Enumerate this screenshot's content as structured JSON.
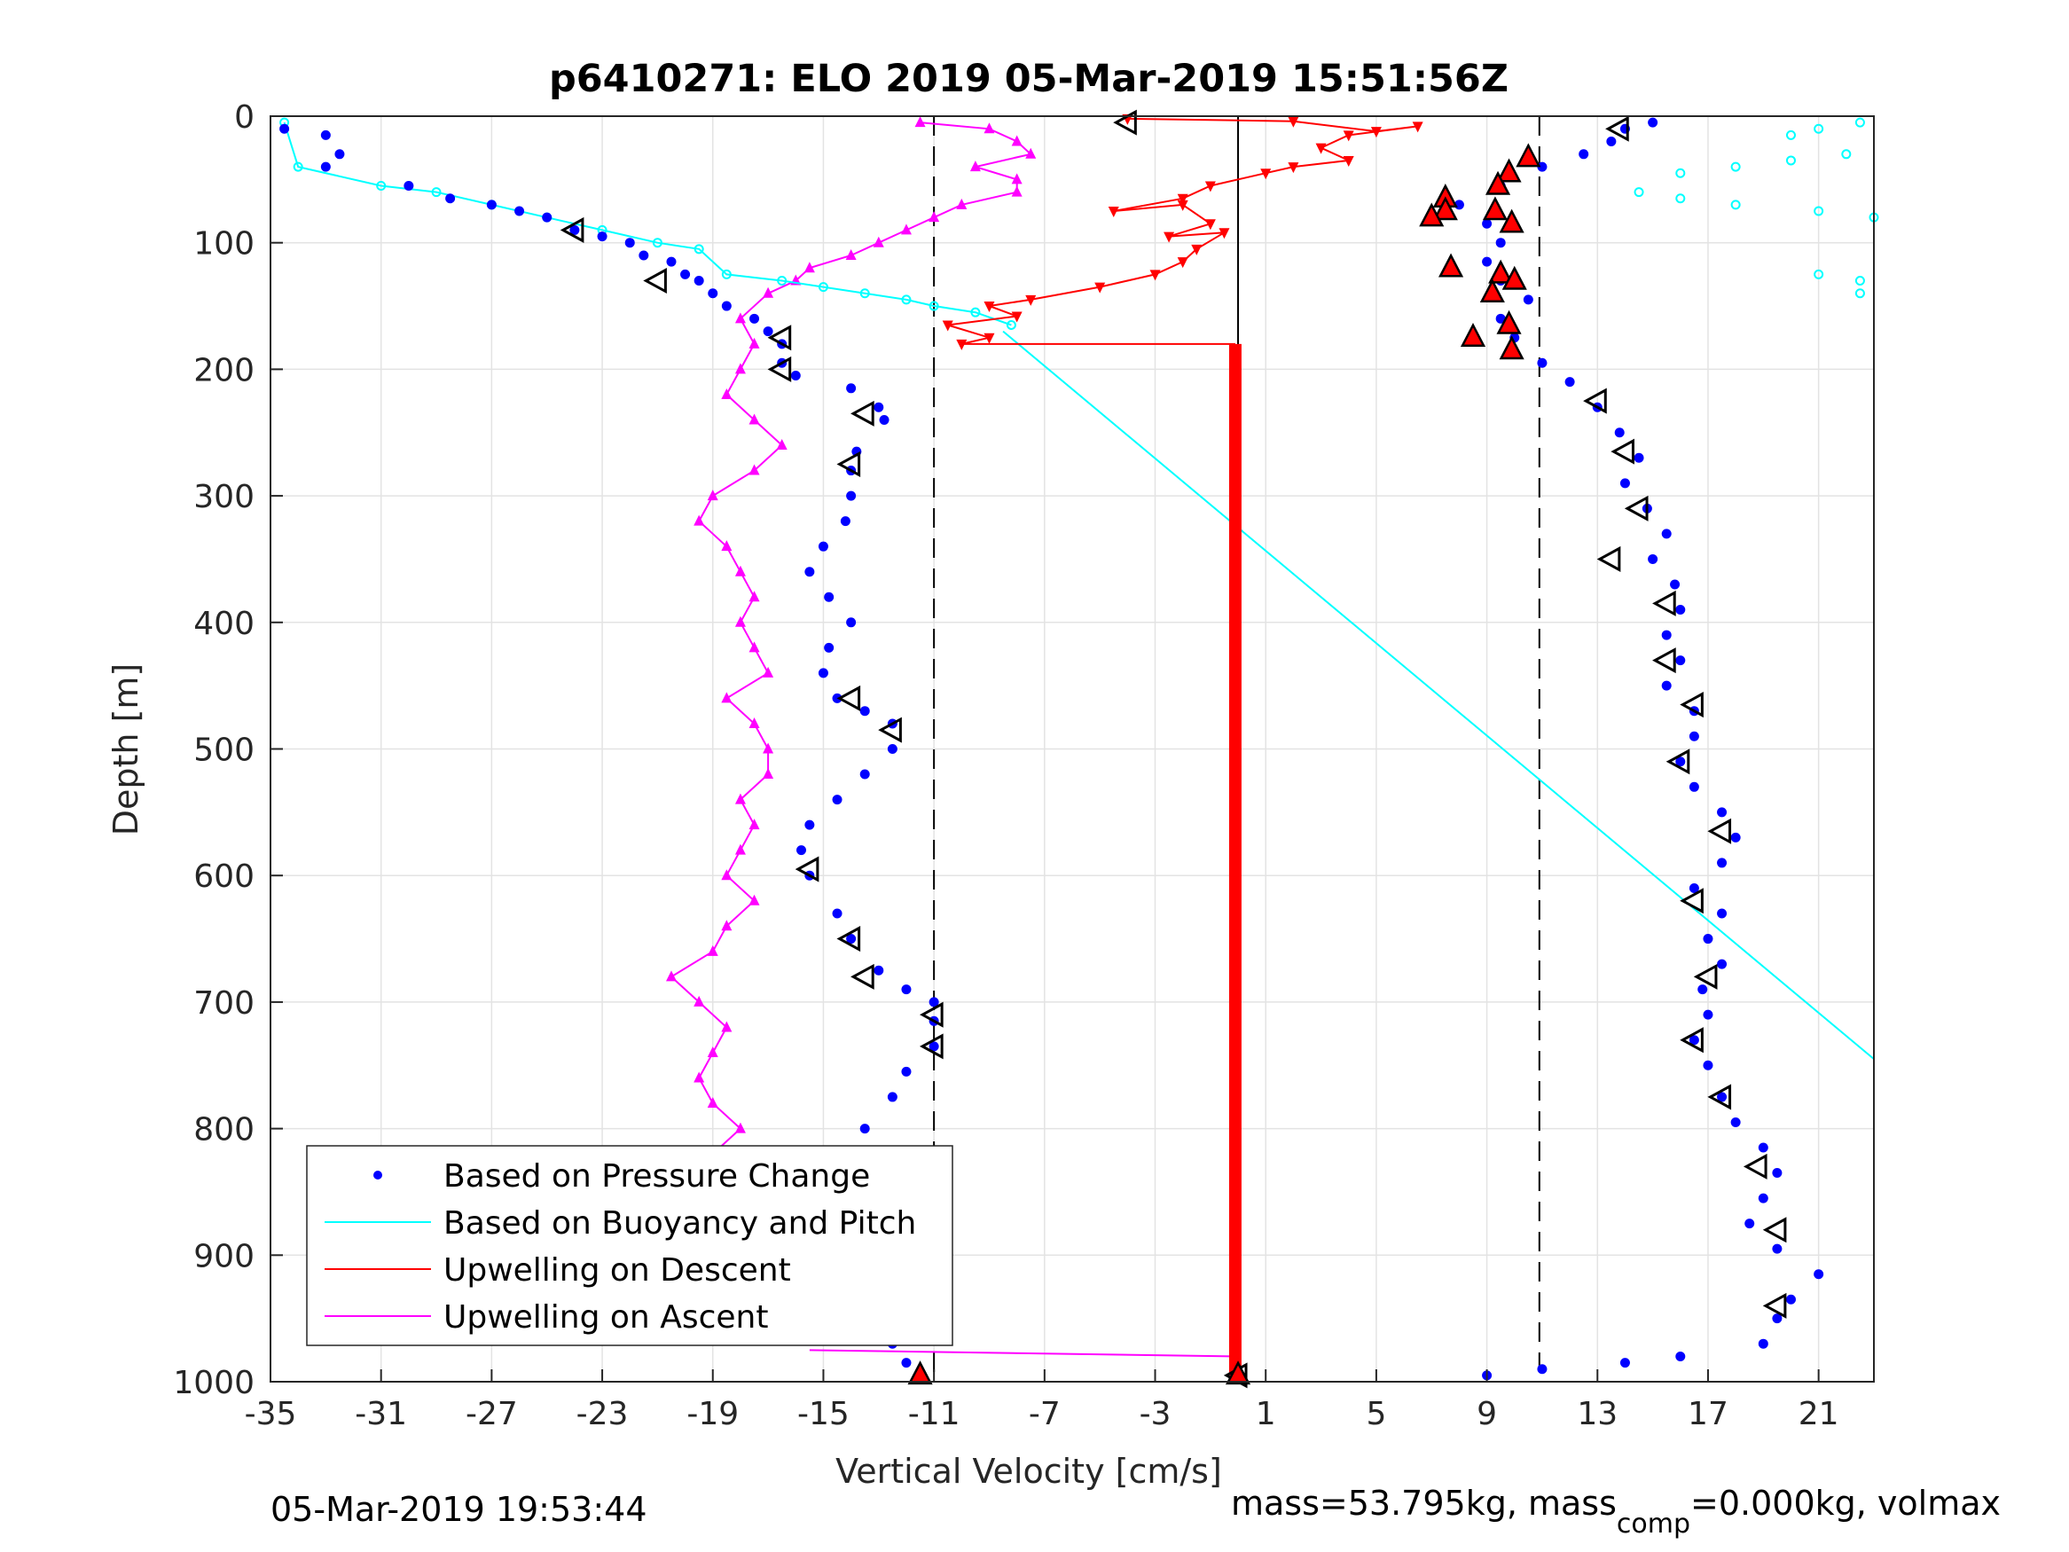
{
  "chart_data": {
    "type": "scatter",
    "title": "p6410271: ELO 2019 05-Mar-2019 15:51:56Z",
    "xlabel": "Vertical Velocity [cm/s]",
    "ylabel": "Depth [m]",
    "xlim": [
      -35,
      23
    ],
    "ylim": [
      0,
      1000
    ],
    "y_reversed": true,
    "grid": true,
    "x_ticks": [
      -35,
      -31,
      -27,
      -23,
      -19,
      -15,
      -11,
      -7,
      -3,
      1,
      5,
      9,
      13,
      17,
      21
    ],
    "x_tick_labels": [
      "-35",
      "-31",
      "-27",
      "-23",
      "-19",
      "-15",
      "-11",
      "-7",
      "-3",
      "1",
      "5",
      "9",
      "13",
      "17",
      "21"
    ],
    "y_ticks": [
      0,
      100,
      200,
      300,
      400,
      500,
      600,
      700,
      800,
      900,
      1000
    ],
    "y_tick_labels": [
      "0",
      "100",
      "200",
      "300",
      "400",
      "500",
      "600",
      "700",
      "800",
      "900",
      "1000"
    ],
    "reference_lines_x": [
      -11,
      0,
      10.9
    ],
    "legend_position": "bottom-left",
    "legend": [
      {
        "label": "Based on Pressure Change",
        "color": "#0000ff",
        "style": "dot"
      },
      {
        "label": "Based on Buoyancy and Pitch",
        "color": "#00ffff",
        "style": "line"
      },
      {
        "label": "Upwelling on Descent",
        "color": "#ff0000",
        "style": "line"
      },
      {
        "label": "Upwelling on Ascent",
        "color": "#ff00ff",
        "style": "line"
      }
    ],
    "series": [
      {
        "name": "Based on Pressure Change",
        "color": "#0000ff",
        "descent": [
          [
            -34.5,
            10
          ],
          [
            -33,
            15
          ],
          [
            -32.5,
            30
          ],
          [
            -33,
            40
          ],
          [
            -30,
            55
          ],
          [
            -28.5,
            65
          ],
          [
            -27,
            70
          ],
          [
            -26,
            75
          ],
          [
            -25,
            80
          ],
          [
            -24,
            90
          ],
          [
            -23,
            95
          ],
          [
            -22,
            100
          ],
          [
            -21.5,
            110
          ],
          [
            -20.5,
            115
          ],
          [
            -20,
            125
          ],
          [
            -19.5,
            130
          ],
          [
            -19,
            140
          ],
          [
            -18.5,
            150
          ],
          [
            -17.5,
            160
          ],
          [
            -17,
            170
          ],
          [
            -16.5,
            180
          ],
          [
            -16.5,
            195
          ],
          [
            -16,
            205
          ],
          [
            -14,
            215
          ],
          [
            -13,
            230
          ],
          [
            -12.8,
            240
          ],
          [
            -13.8,
            265
          ],
          [
            -14,
            280
          ],
          [
            -14,
            300
          ],
          [
            -14.2,
            320
          ],
          [
            -15,
            340
          ],
          [
            -15.5,
            360
          ],
          [
            -14.8,
            380
          ],
          [
            -14,
            400
          ],
          [
            -14.8,
            420
          ],
          [
            -15,
            440
          ],
          [
            -14.5,
            460
          ],
          [
            -13.5,
            470
          ],
          [
            -12.5,
            480
          ],
          [
            -12.5,
            500
          ],
          [
            -13.5,
            520
          ],
          [
            -14.5,
            540
          ],
          [
            -15.5,
            560
          ],
          [
            -15.8,
            580
          ],
          [
            -15.5,
            600
          ],
          [
            -14.5,
            630
          ],
          [
            -14,
            650
          ],
          [
            -13,
            675
          ],
          [
            -12,
            690
          ],
          [
            -11,
            700
          ],
          [
            -11,
            715
          ],
          [
            -11,
            735
          ],
          [
            -12,
            755
          ],
          [
            -12.5,
            775
          ],
          [
            -13.5,
            800
          ],
          [
            -14,
            820
          ],
          [
            -14.5,
            840
          ],
          [
            -14.8,
            860
          ],
          [
            -15,
            880
          ],
          [
            -14.5,
            900
          ],
          [
            -14,
            920
          ],
          [
            -13.5,
            940
          ],
          [
            -13.5,
            960
          ],
          [
            -12.5,
            970
          ],
          [
            -12,
            985
          ],
          [
            -11.5,
            995
          ]
        ],
        "ascent": [
          [
            9,
            995
          ],
          [
            11,
            990
          ],
          [
            14,
            985
          ],
          [
            16,
            980
          ],
          [
            19,
            970
          ],
          [
            19.5,
            950
          ],
          [
            20,
            935
          ],
          [
            21,
            915
          ],
          [
            19.5,
            895
          ],
          [
            18.5,
            875
          ],
          [
            19,
            855
          ],
          [
            19.5,
            835
          ],
          [
            19,
            815
          ],
          [
            18,
            795
          ],
          [
            17.5,
            775
          ],
          [
            17,
            750
          ],
          [
            16.5,
            730
          ],
          [
            17,
            710
          ],
          [
            16.8,
            690
          ],
          [
            17.5,
            670
          ],
          [
            17,
            650
          ],
          [
            17.5,
            630
          ],
          [
            16.5,
            610
          ],
          [
            17.5,
            590
          ],
          [
            18,
            570
          ],
          [
            17.5,
            550
          ],
          [
            16.5,
            530
          ],
          [
            16,
            510
          ],
          [
            16.5,
            490
          ],
          [
            16.5,
            470
          ],
          [
            15.5,
            450
          ],
          [
            16,
            430
          ],
          [
            15.5,
            410
          ],
          [
            16,
            390
          ],
          [
            15.8,
            370
          ],
          [
            15,
            350
          ],
          [
            15.5,
            330
          ],
          [
            14.8,
            310
          ],
          [
            14,
            290
          ],
          [
            14.5,
            270
          ],
          [
            13.8,
            250
          ],
          [
            13,
            230
          ],
          [
            12,
            210
          ],
          [
            11,
            195
          ],
          [
            10,
            175
          ],
          [
            9.5,
            160
          ],
          [
            10.5,
            145
          ],
          [
            9.5,
            130
          ],
          [
            9,
            115
          ],
          [
            9.5,
            100
          ],
          [
            9,
            85
          ],
          [
            8,
            70
          ],
          [
            9.5,
            55
          ],
          [
            11,
            40
          ],
          [
            12.5,
            30
          ],
          [
            13.5,
            20
          ],
          [
            14,
            10
          ],
          [
            15,
            5
          ]
        ]
      },
      {
        "name": "Based on Buoyancy and Pitch",
        "color": "#00ffff",
        "descent": [
          [
            -34.5,
            5
          ],
          [
            -34,
            40
          ],
          [
            -31,
            55
          ],
          [
            -29,
            60
          ],
          [
            -27,
            70
          ],
          [
            -25,
            80
          ],
          [
            -23,
            90
          ],
          [
            -21,
            100
          ],
          [
            -19.5,
            105
          ],
          [
            -18.5,
            125
          ],
          [
            -16.5,
            130
          ],
          [
            -15,
            135
          ],
          [
            -13.5,
            140
          ],
          [
            -12,
            145
          ],
          [
            -11,
            150
          ],
          [
            -9.5,
            155
          ],
          [
            -8.2,
            165
          ]
        ],
        "line_segment": [
          [
            -8.5,
            170
          ],
          [
            23,
            745
          ]
        ],
        "ascent": [
          [
            14.5,
            60
          ],
          [
            16,
            65
          ],
          [
            18,
            70
          ],
          [
            21,
            75
          ],
          [
            23,
            80
          ],
          [
            16,
            45
          ],
          [
            18,
            40
          ],
          [
            20,
            35
          ],
          [
            22,
            30
          ],
          [
            20,
            15
          ],
          [
            21,
            10
          ],
          [
            22.5,
            5
          ],
          [
            21,
            125
          ],
          [
            22.5,
            130
          ],
          [
            22.5,
            140
          ]
        ]
      },
      {
        "name": "Upwelling on Descent",
        "color": "#ff0000",
        "descent": [
          [
            -4,
            2
          ],
          [
            2,
            4
          ],
          [
            5,
            12
          ],
          [
            6.5,
            8
          ],
          [
            4,
            15
          ],
          [
            3,
            25
          ],
          [
            4,
            35
          ],
          [
            2,
            40
          ],
          [
            1,
            45
          ],
          [
            -1,
            55
          ],
          [
            -2,
            65
          ],
          [
            -4.5,
            75
          ],
          [
            -2,
            70
          ],
          [
            -1,
            85
          ],
          [
            -2.5,
            95
          ],
          [
            -0.5,
            92
          ],
          [
            -1.5,
            105
          ],
          [
            -2,
            115
          ],
          [
            -3,
            125
          ],
          [
            -5,
            135
          ],
          [
            -7.5,
            145
          ],
          [
            -9,
            150
          ],
          [
            -8,
            158
          ],
          [
            -10.5,
            165
          ],
          [
            -9,
            175
          ],
          [
            -10,
            180
          ]
        ],
        "constant_segment": [
          [
            -0.1,
            180
          ],
          [
            -0.1,
            995
          ]
        ]
      },
      {
        "name": "Upwelling on Ascent",
        "color": "#ff00ff",
        "ascent": [
          [
            -11.5,
            5
          ],
          [
            -9,
            10
          ],
          [
            -8,
            20
          ],
          [
            -7.5,
            30
          ],
          [
            -9.5,
            40
          ],
          [
            -8,
            50
          ],
          [
            -8,
            60
          ],
          [
            -10,
            70
          ],
          [
            -11,
            80
          ],
          [
            -12,
            90
          ],
          [
            -13,
            100
          ],
          [
            -14,
            110
          ],
          [
            -15.5,
            120
          ],
          [
            -16,
            130
          ],
          [
            -17,
            140
          ],
          [
            -18,
            160
          ],
          [
            -17.5,
            180
          ],
          [
            -18,
            200
          ],
          [
            -18.5,
            220
          ],
          [
            -17.5,
            240
          ],
          [
            -16.5,
            260
          ],
          [
            -17.5,
            280
          ],
          [
            -19,
            300
          ],
          [
            -19.5,
            320
          ],
          [
            -18.5,
            340
          ],
          [
            -18,
            360
          ],
          [
            -17.5,
            380
          ],
          [
            -18,
            400
          ],
          [
            -17.5,
            420
          ],
          [
            -17,
            440
          ],
          [
            -18.5,
            460
          ],
          [
            -17.5,
            480
          ],
          [
            -17,
            500
          ],
          [
            -17,
            520
          ],
          [
            -18,
            540
          ],
          [
            -17.5,
            560
          ],
          [
            -18,
            580
          ],
          [
            -18.5,
            600
          ],
          [
            -17.5,
            620
          ],
          [
            -18.5,
            640
          ],
          [
            -19,
            660
          ],
          [
            -20.5,
            680
          ],
          [
            -19.5,
            700
          ],
          [
            -18.5,
            720
          ],
          [
            -19,
            740
          ],
          [
            -19.5,
            760
          ],
          [
            -19,
            780
          ],
          [
            -18,
            800
          ],
          [
            -19,
            820
          ],
          [
            -18,
            840
          ],
          [
            -17.5,
            860
          ],
          [
            -16.5,
            880
          ],
          [
            -16,
            900
          ],
          [
            -16.5,
            920
          ],
          [
            -16,
            940
          ],
          [
            -15.5,
            960
          ]
        ],
        "connector_segment": [
          [
            -15.5,
            975
          ],
          [
            0,
            980
          ]
        ]
      }
    ],
    "markers": {
      "black_triangles": [
        [
          -24,
          90
        ],
        [
          -21,
          130
        ],
        [
          -16.5,
          175
        ],
        [
          -16.5,
          200
        ],
        [
          -13.5,
          235
        ],
        [
          -14,
          275
        ],
        [
          -14,
          460
        ],
        [
          -12.5,
          485
        ],
        [
          -15.5,
          595
        ],
        [
          -14,
          650
        ],
        [
          -13.5,
          680
        ],
        [
          -11,
          710
        ],
        [
          -11,
          735
        ],
        [
          -14,
          830
        ],
        [
          -4,
          5
        ],
        [
          13.8,
          10
        ],
        [
          13,
          225
        ],
        [
          14,
          265
        ],
        [
          14.5,
          310
        ],
        [
          13.5,
          350
        ],
        [
          15.5,
          385
        ],
        [
          15.5,
          430
        ],
        [
          16.5,
          465
        ],
        [
          16,
          510
        ],
        [
          17.5,
          565
        ],
        [
          16.5,
          620
        ],
        [
          17,
          680
        ],
        [
          16.5,
          730
        ],
        [
          17.5,
          775
        ],
        [
          18.8,
          830
        ],
        [
          19.5,
          880
        ],
        [
          19.5,
          940
        ],
        [
          0,
          995
        ]
      ],
      "red_filled_triangles": [
        [
          10.5,
          33
        ],
        [
          9.8,
          45
        ],
        [
          9.4,
          55
        ],
        [
          7.5,
          65
        ],
        [
          7.5,
          75
        ],
        [
          9.3,
          75
        ],
        [
          7,
          80
        ],
        [
          9.9,
          85
        ],
        [
          7.7,
          120
        ],
        [
          9.5,
          125
        ],
        [
          10,
          130
        ],
        [
          9.2,
          140
        ],
        [
          9.8,
          165
        ],
        [
          8.5,
          175
        ],
        [
          9.9,
          185
        ],
        [
          -11.5,
          995
        ],
        [
          0,
          995
        ]
      ]
    }
  },
  "footer": {
    "timestamp": "05-Mar-2019 19:53:44",
    "mass_text_prefix": "mass=53.795kg, mass",
    "mass_text_sub": "comp",
    "mass_text_suffix": "=0.000kg, volmax"
  }
}
